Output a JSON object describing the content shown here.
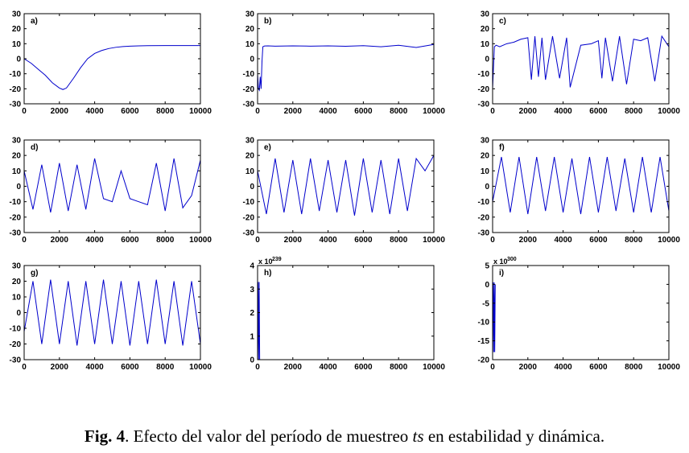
{
  "figure": {
    "caption": {
      "fig_label": "Fig. 4",
      "text_before": ". Efecto del valor del período de muestreo ",
      "emph": "ts",
      "text_after": " en estabilidad y dinámica."
    }
  },
  "chart_data": [
    {
      "id": "a",
      "type": "line",
      "panel_label": "a)",
      "xlim": [
        0,
        10000
      ],
      "ylim": [
        -30,
        30
      ],
      "xticks": [
        0,
        2000,
        4000,
        6000,
        8000,
        10000
      ],
      "yticks": [
        -30,
        -20,
        -10,
        0,
        10,
        20,
        30
      ],
      "color": "#0000cc",
      "series": [
        {
          "x": [
            0,
            400,
            800,
            1200,
            1600,
            2000,
            2200,
            2400,
            2800,
            3200,
            3600,
            4000,
            4400,
            4800,
            5200,
            5600,
            6000,
            6500,
            7000,
            8000,
            9000,
            10000
          ],
          "y": [
            0,
            -3,
            -7,
            -11,
            -16,
            -19.5,
            -20.5,
            -19.5,
            -13,
            -6,
            0,
            3.5,
            5.5,
            6.8,
            7.6,
            8.1,
            8.4,
            8.6,
            8.7,
            8.8,
            8.8,
            8.8
          ]
        }
      ]
    },
    {
      "id": "b",
      "type": "line",
      "panel_label": "b)",
      "xlim": [
        0,
        10000
      ],
      "ylim": [
        -30,
        30
      ],
      "xticks": [
        0,
        2000,
        4000,
        6000,
        8000,
        10000
      ],
      "yticks": [
        -30,
        -20,
        -10,
        0,
        10,
        20,
        30
      ],
      "color": "#0000cc",
      "series": [
        {
          "x": [
            0,
            50,
            100,
            150,
            200,
            250,
            300,
            400,
            600,
            1000,
            2000,
            3000,
            4000,
            5000,
            6000,
            7000,
            8000,
            9000,
            10000
          ],
          "y": [
            -10,
            -20,
            -21,
            -12,
            -20,
            -2,
            8,
            8.5,
            8.6,
            8.4,
            8.6,
            8.4,
            8.6,
            8.3,
            8.7,
            8.0,
            9.0,
            7.5,
            9.5
          ]
        }
      ]
    },
    {
      "id": "c",
      "type": "line",
      "panel_label": "c)",
      "xlim": [
        0,
        10000
      ],
      "ylim": [
        -30,
        30
      ],
      "xticks": [
        0,
        2000,
        4000,
        6000,
        8000,
        10000
      ],
      "yticks": [
        -30,
        -20,
        -10,
        0,
        10,
        20,
        30
      ],
      "color": "#0000cc",
      "series": [
        {
          "x": [
            0,
            100,
            200,
            400,
            800,
            1200,
            1600,
            2000,
            2200,
            2400,
            2600,
            2800,
            3000,
            3400,
            3800,
            4200,
            4400,
            5000,
            5600,
            6000,
            6200,
            6400,
            6800,
            7200,
            7600,
            8000,
            8400,
            8800,
            9200,
            9600,
            10000
          ],
          "y": [
            -20,
            8,
            9,
            8,
            10,
            11,
            13,
            14,
            -14,
            15,
            -12,
            14,
            -14,
            15,
            -13,
            14,
            -19,
            9,
            10,
            12,
            -13,
            14,
            -15,
            15,
            -17,
            13,
            12,
            14,
            -15,
            15,
            8
          ]
        }
      ]
    },
    {
      "id": "d",
      "type": "line",
      "panel_label": "d)",
      "xlim": [
        0,
        10000
      ],
      "ylim": [
        -30,
        30
      ],
      "xticks": [
        0,
        2000,
        4000,
        6000,
        8000,
        10000
      ],
      "yticks": [
        -30,
        -20,
        -10,
        0,
        10,
        20,
        30
      ],
      "color": "#0000cc",
      "series": [
        {
          "x": [
            0,
            500,
            1000,
            1500,
            2000,
            2500,
            3000,
            3500,
            4000,
            4500,
            5000,
            5500,
            6000,
            6500,
            7000,
            7500,
            8000,
            8500,
            9000,
            9500,
            10000
          ],
          "y": [
            10,
            -15,
            14,
            -17,
            15,
            -16,
            14,
            -15,
            18,
            -8,
            -10,
            10,
            -8,
            -10,
            -12,
            15,
            -16,
            18,
            -14,
            -6,
            17
          ]
        }
      ]
    },
    {
      "id": "e",
      "type": "line",
      "panel_label": "e)",
      "xlim": [
        0,
        10000
      ],
      "ylim": [
        -30,
        30
      ],
      "xticks": [
        0,
        2000,
        4000,
        6000,
        8000,
        10000
      ],
      "yticks": [
        -30,
        -20,
        -10,
        0,
        10,
        20,
        30
      ],
      "color": "#0000cc",
      "series": [
        {
          "x": [
            0,
            500,
            1000,
            1500,
            2000,
            2500,
            3000,
            3500,
            4000,
            4500,
            5000,
            5500,
            6000,
            6500,
            7000,
            7500,
            8000,
            8500,
            9000,
            9500,
            10000
          ],
          "y": [
            10,
            -18,
            18,
            -17,
            17,
            -18,
            18,
            -16,
            17,
            -17,
            17,
            -19,
            18,
            -17,
            17,
            -18,
            18,
            -16,
            18,
            10,
            20
          ]
        }
      ]
    },
    {
      "id": "f",
      "type": "line",
      "panel_label": "f)",
      "xlim": [
        0,
        10000
      ],
      "ylim": [
        -30,
        30
      ],
      "xticks": [
        0,
        2000,
        4000,
        6000,
        8000,
        10000
      ],
      "yticks": [
        -30,
        -20,
        -10,
        0,
        10,
        20,
        30
      ],
      "color": "#0000cc",
      "series": [
        {
          "x": [
            0,
            500,
            1000,
            1500,
            2000,
            2500,
            3000,
            3500,
            4000,
            4500,
            5000,
            5500,
            6000,
            6500,
            7000,
            7500,
            8000,
            8500,
            9000,
            9500,
            10000
          ],
          "y": [
            -10,
            19,
            -17,
            19,
            -18,
            19,
            -16,
            19,
            -17,
            18,
            -18,
            19,
            -17,
            19,
            -16,
            18,
            -17,
            19,
            -17,
            19,
            -16
          ]
        }
      ]
    },
    {
      "id": "g",
      "type": "line",
      "panel_label": "g)",
      "xlim": [
        0,
        10000
      ],
      "ylim": [
        -30,
        30
      ],
      "xticks": [
        0,
        2000,
        4000,
        6000,
        8000,
        10000
      ],
      "yticks": [
        -30,
        -20,
        -10,
        0,
        10,
        20,
        30
      ],
      "color": "#0000cc",
      "series": [
        {
          "x": [
            0,
            500,
            1000,
            1500,
            2000,
            2500,
            3000,
            3500,
            4000,
            4500,
            5000,
            5500,
            6000,
            6500,
            7000,
            7500,
            8000,
            8500,
            9000,
            9500,
            10000
          ],
          "y": [
            -12,
            20,
            -20,
            21,
            -20,
            20,
            -21,
            20,
            -20,
            21,
            -20,
            20,
            -21,
            20,
            -20,
            21,
            -20,
            20,
            -21,
            20,
            -20
          ]
        }
      ]
    },
    {
      "id": "h",
      "type": "line",
      "panel_label": "h)",
      "xlim": [
        0,
        10000
      ],
      "ylim": [
        0,
        4
      ],
      "exponent_base": "x 10",
      "exponent_power": "239",
      "xticks": [
        0,
        2000,
        4000,
        6000,
        8000,
        10000
      ],
      "yticks": [
        0,
        1,
        2,
        3,
        4
      ],
      "color": "#0000cc",
      "series": [
        {
          "x": [
            0,
            30,
            60,
            90,
            120,
            150
          ],
          "y": [
            0,
            3.3,
            0,
            3.3,
            0,
            0
          ]
        }
      ]
    },
    {
      "id": "i",
      "type": "line",
      "panel_label": "i)",
      "xlim": [
        0,
        10000
      ],
      "ylim": [
        -20,
        5
      ],
      "exponent_base": "x 10",
      "exponent_power": "300",
      "xticks": [
        0,
        2000,
        4000,
        6000,
        8000,
        10000
      ],
      "yticks": [
        -20,
        -15,
        -10,
        -5,
        0,
        5
      ],
      "color": "#0000cc",
      "series": [
        {
          "x": [
            0,
            30,
            60,
            90,
            120,
            150
          ],
          "y": [
            0,
            0.5,
            -18,
            0.5,
            -18,
            0
          ]
        }
      ]
    }
  ]
}
